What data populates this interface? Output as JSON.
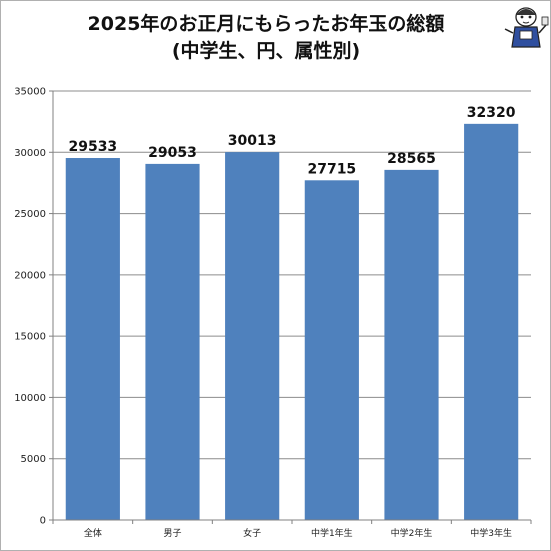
{
  "chart_data": {
    "type": "bar",
    "title": "2025年のお正月にもらったお年玉の総額",
    "subtitle": "(中学生、円、属性別)",
    "categories": [
      "全体",
      "男子",
      "女子",
      "中学1年生",
      "中学2年生",
      "中学3年生"
    ],
    "values": [
      29533,
      29053,
      30013,
      27715,
      28565,
      32320
    ],
    "ylim": [
      0,
      35000
    ],
    "yticks": [
      0,
      5000,
      10000,
      15000,
      20000,
      25000,
      30000,
      35000
    ],
    "grid": true,
    "bar_color": "#4f81bd",
    "grid_color": "#8c8c8c",
    "axis_color": "#808080"
  },
  "mascot": {
    "icon": "mascot-icon"
  }
}
